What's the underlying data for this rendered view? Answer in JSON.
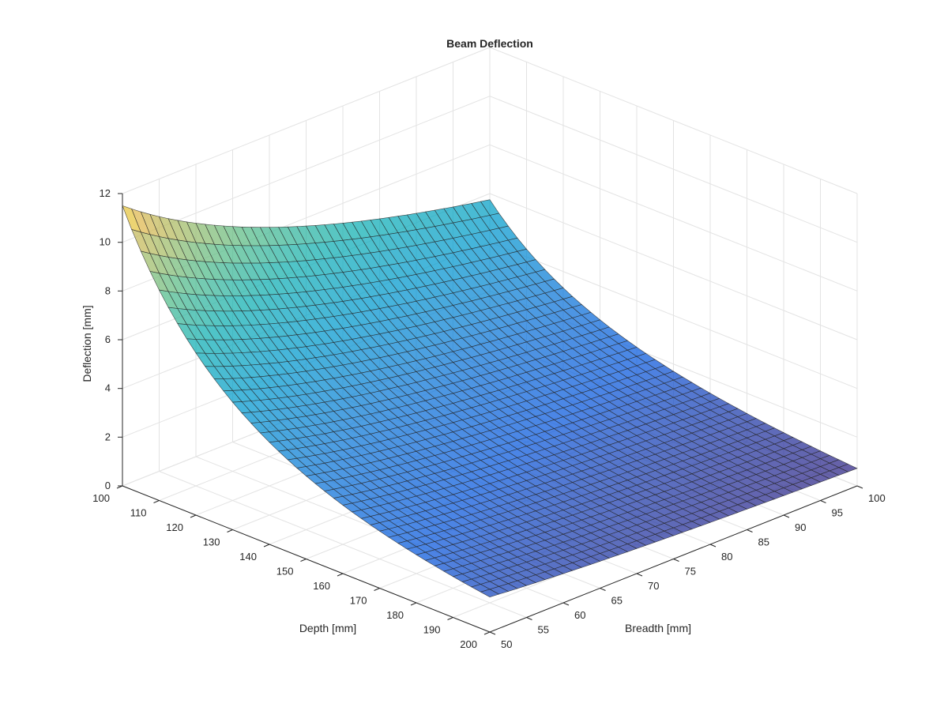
{
  "chart_data": {
    "type": "surface",
    "title": "Beam Deflection",
    "xlabel": "Breadth [mm]",
    "ylabel": "Depth [mm]",
    "zlabel": "Deflection [mm]",
    "xlim": [
      50,
      100
    ],
    "ylim": [
      100,
      200
    ],
    "zlim": [
      0,
      12
    ],
    "x_ticks": [
      "50",
      "55",
      "60",
      "65",
      "70",
      "75",
      "80",
      "85",
      "90",
      "95",
      "100"
    ],
    "y_ticks": [
      "100",
      "110",
      "120",
      "130",
      "140",
      "150",
      "160",
      "170",
      "180",
      "190",
      "200"
    ],
    "z_ticks": [
      "0",
      "2",
      "4",
      "6",
      "8",
      "10",
      "12"
    ],
    "grid": true,
    "colormap": "parula",
    "face_alpha": 0.75,
    "mesh_count": 40,
    "model": "deflection proportional to 1 / (breadth * depth^3)",
    "corner_values": [
      {
        "x": 50,
        "y": 100,
        "z": 11.5
      },
      {
        "x": 100,
        "y": 100,
        "z": 5.75
      },
      {
        "x": 50,
        "y": 200,
        "z": 1.44
      },
      {
        "x": 100,
        "y": 200,
        "z": 0.72
      }
    ]
  }
}
